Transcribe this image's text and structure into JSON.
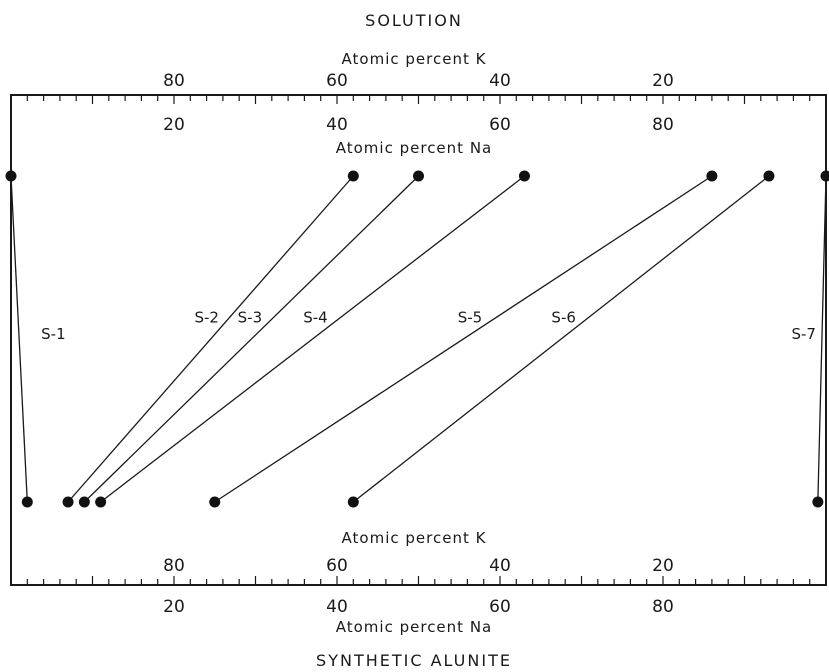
{
  "chart_data": {
    "type": "scatter",
    "title_top": "SOLUTION",
    "title_bottom": "SYNTHETIC ALUNITE",
    "top_axis": {
      "label_k": "Atomic percent K",
      "label_na": "Atomic percent Na",
      "k_ticks": [
        "80",
        "60",
        "40",
        "20"
      ],
      "na_ticks": [
        "20",
        "40",
        "60",
        "80"
      ]
    },
    "bottom_axis": {
      "label_k": "Atomic percent K",
      "label_na": "Atomic percent Na",
      "k_ticks": [
        "80",
        "60",
        "40",
        "20"
      ],
      "na_ticks": [
        "20",
        "40",
        "60",
        "80"
      ]
    },
    "xlim": [
      0,
      100
    ],
    "xlabel_unit": "Atomic percent Na",
    "series": [
      {
        "name": "S-1",
        "solution_na": 0,
        "alunite_na": 2
      },
      {
        "name": "S-2",
        "solution_na": 42,
        "alunite_na": 7
      },
      {
        "name": "S-3",
        "solution_na": 50,
        "alunite_na": 9
      },
      {
        "name": "S-4",
        "solution_na": 63,
        "alunite_na": 11
      },
      {
        "name": "S-5",
        "solution_na": 86,
        "alunite_na": 25
      },
      {
        "name": "S-6",
        "solution_na": 93,
        "alunite_na": 42
      },
      {
        "name": "S-7",
        "solution_na": 100,
        "alunite_na": 99
      }
    ]
  }
}
